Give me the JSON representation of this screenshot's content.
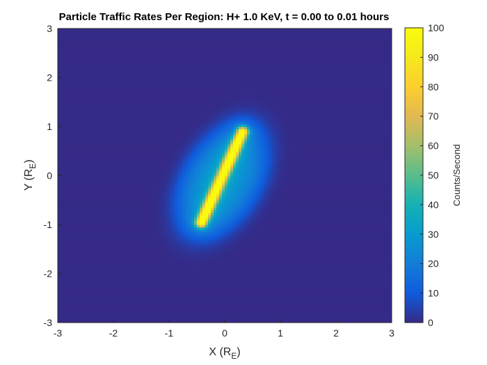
{
  "chart_data": {
    "type": "heatmap",
    "title": "Particle Traffic Rates Per Region: H+ 1.0 KeV, t = 0.00 to 0.01 hours",
    "xlabel": {
      "text": "X (R",
      "sub": "E",
      "close": ")"
    },
    "ylabel": {
      "text": "Y (R",
      "sub": "E",
      "close": ")"
    },
    "xlim": [
      -3,
      3
    ],
    "ylim": [
      -3,
      3
    ],
    "xticks": [
      "-3",
      "-2",
      "-1",
      "0",
      "1",
      "2",
      "3"
    ],
    "yticks": [
      "-3",
      "-2",
      "-1",
      "0",
      "1",
      "2",
      "3"
    ],
    "grid": false,
    "colormap": "parula",
    "colorbar": {
      "label": "Counts/Second",
      "range": [
        0,
        100
      ],
      "ticks": [
        "0",
        "10",
        "20",
        "30",
        "40",
        "50",
        "60",
        "70",
        "80",
        "90",
        "100"
      ]
    },
    "field": {
      "background": 0,
      "ellipse_center": [
        -0.05,
        -0.1
      ],
      "ellipse_semi_axes": [
        0.75,
        1.3
      ],
      "ellipse_rotation_deg": -25,
      "ellipse_peak": 25,
      "ridge_start": [
        -0.42,
        -0.95
      ],
      "ridge_end": [
        0.32,
        0.9
      ],
      "ridge_peak": 88,
      "ridge_halfwidth": 0.07
    }
  }
}
